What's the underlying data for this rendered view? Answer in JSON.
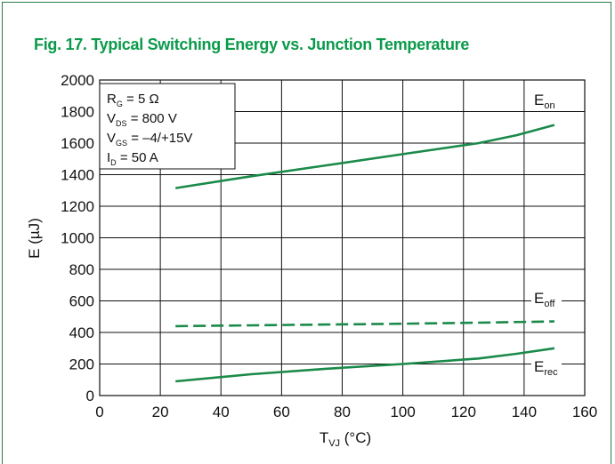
{
  "chart_data": {
    "type": "line",
    "title": "Fig. 17. Typical Switching Energy vs. Junction Temperature",
    "xlabel": {
      "main": "T",
      "sub": "VJ",
      "rest": " (°C)"
    },
    "ylabel": "E (µJ)",
    "xlim": [
      0,
      160
    ],
    "ylim": [
      0,
      2000
    ],
    "xticks": [
      0,
      20,
      40,
      60,
      80,
      100,
      120,
      140,
      160
    ],
    "yticks": [
      0,
      200,
      400,
      600,
      800,
      1000,
      1200,
      1400,
      1600,
      1800,
      2000
    ],
    "grid": true,
    "colors": {
      "series": "#1a8a4a",
      "title": "#0a9a4a",
      "grid": "#111111"
    },
    "conditions": [
      {
        "main": "R",
        "sub": "G",
        "rest": " = 5 Ω"
      },
      {
        "main": "V",
        "sub": "DS",
        "rest": " = 800 V"
      },
      {
        "main": "V",
        "sub": "GS",
        "rest": " = –4/+15V"
      },
      {
        "main": "I",
        "sub": "D",
        "rest": "  = 50 A"
      }
    ],
    "series": [
      {
        "name": {
          "main": "E",
          "sub": "on"
        },
        "style": "solid",
        "x": [
          25,
          50,
          75,
          100,
          125,
          137.5,
          150
        ],
        "y": [
          1315,
          1390,
          1460,
          1530,
          1600,
          1650,
          1715
        ]
      },
      {
        "name": {
          "main": "E",
          "sub": "off"
        },
        "style": "dashed",
        "x": [
          25,
          50,
          75,
          100,
          125,
          150
        ],
        "y": [
          440,
          445,
          450,
          455,
          462,
          470
        ]
      },
      {
        "name": {
          "main": "E",
          "sub": "rec"
        },
        "style": "solid",
        "x": [
          25,
          50,
          75,
          100,
          125,
          137.5,
          150
        ],
        "y": [
          90,
          135,
          170,
          200,
          235,
          265,
          300
        ]
      }
    ]
  }
}
